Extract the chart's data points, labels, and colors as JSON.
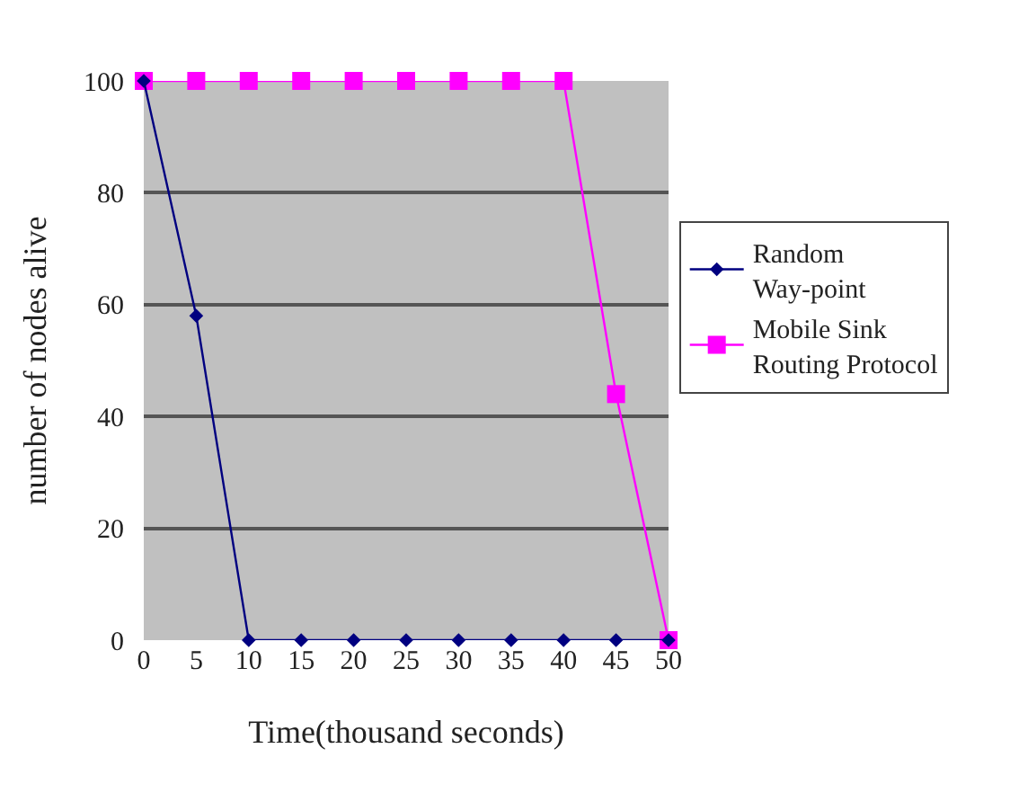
{
  "chart_data": {
    "type": "line",
    "xlabel": "Time(thousand seconds)",
    "ylabel": "number of nodes alive",
    "x": [
      0,
      5,
      10,
      15,
      20,
      25,
      30,
      35,
      40,
      45,
      50
    ],
    "series": [
      {
        "name": "Random Way-point",
        "color": "#000080",
        "marker": "diamond",
        "values": [
          100,
          58,
          0,
          0,
          0,
          0,
          0,
          0,
          0,
          0,
          0
        ]
      },
      {
        "name": "Mobile Sink Routing Protocol",
        "color": "#ff00ff",
        "marker": "square",
        "values": [
          100,
          100,
          100,
          100,
          100,
          100,
          100,
          100,
          100,
          44,
          0
        ]
      }
    ],
    "xlim": [
      0,
      50
    ],
    "xticks": [
      0,
      5,
      10,
      15,
      20,
      25,
      30,
      35,
      40,
      45,
      50
    ],
    "ylim": [
      0,
      100
    ],
    "yticks": [
      0,
      20,
      40,
      60,
      80,
      100
    ],
    "grid": "y",
    "legend": "right",
    "line_style": "solid"
  }
}
